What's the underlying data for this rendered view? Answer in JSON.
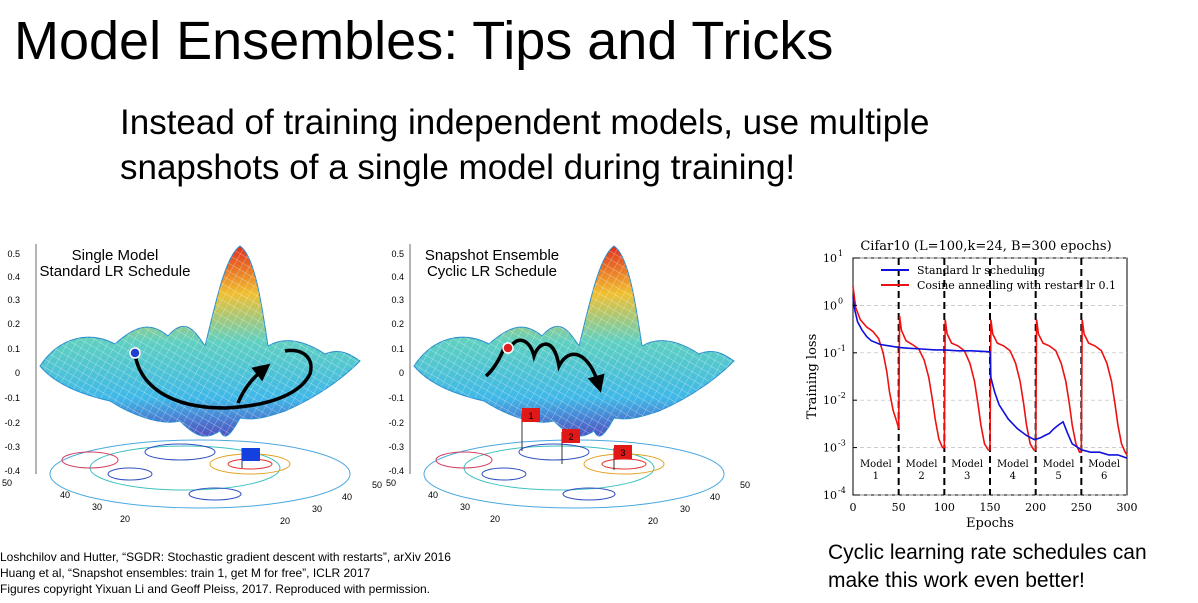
{
  "slide": {
    "title": "Model Ensembles: Tips and Tricks",
    "subtitle_lines": [
      "Instead of training independent models, use multiple",
      "snapshots of a single model during training!"
    ],
    "caption_lines": [
      "Cyclic learning rate schedules can",
      "make this work even better!"
    ],
    "citations": [
      "Loshchilov and Hutter, “SGDR: Stochastic gradient descent with restarts”, arXiv 2016",
      "Huang et al, “Snapshot ensembles: train 1, get M for free”, ICLR 2017",
      "Figures copyright Yixuan Li and Geoff Pleiss, 2017. Reproduced with permission."
    ]
  },
  "surface_plots": [
    {
      "label_lines": [
        "Single Model",
        "Standard LR Schedule"
      ],
      "z_ticks": [
        "0.5",
        "0.4",
        "0.3",
        "0.2",
        "0.1",
        "0",
        "-0.1",
        "-0.2",
        "-0.3",
        "-0.4"
      ],
      "x_ticks": [
        "50",
        "40",
        "30",
        "20"
      ],
      "y_ticks": [
        "20",
        "30",
        "40",
        "50"
      ],
      "flags": [
        ""
      ]
    },
    {
      "label_lines": [
        "Snapshot Ensemble",
        "Cyclic LR Schedule"
      ],
      "z_ticks": [
        "0.5",
        "0.4",
        "0.3",
        "0.2",
        "0.1",
        "0",
        "-0.1",
        "-0.2",
        "-0.3",
        "-0.4"
      ],
      "x_ticks": [
        "50",
        "40",
        "30",
        "20"
      ],
      "y_ticks": [
        "20",
        "30",
        "40",
        "50"
      ],
      "flags": [
        "1",
        "2",
        "3"
      ]
    }
  ],
  "chart_data": {
    "type": "line",
    "title": "Cifar10 (L=100,k=24, B=300 epochs)",
    "xlabel": "Epochs",
    "ylabel": "Training loss",
    "xlim": [
      0,
      300
    ],
    "ylim": [
      0.0001,
      10
    ],
    "yscale": "log",
    "x_ticks": [
      0,
      50,
      100,
      150,
      200,
      250,
      300
    ],
    "y_ticks": [
      {
        "value": 10,
        "mant": "10",
        "exp": "1"
      },
      {
        "value": 1,
        "mant": "10",
        "exp": "0"
      },
      {
        "value": 0.1,
        "mant": "10",
        "exp": "-1"
      },
      {
        "value": 0.01,
        "mant": "10",
        "exp": "-2"
      },
      {
        "value": 0.001,
        "mant": "10",
        "exp": "-3"
      },
      {
        "value": 0.0001,
        "mant": "10",
        "exp": "-4"
      }
    ],
    "restarts": [
      50,
      100,
      150,
      200,
      250
    ],
    "model_labels": [
      {
        "name": "Model",
        "num": "1",
        "x": 25
      },
      {
        "name": "Model",
        "num": "2",
        "x": 75
      },
      {
        "name": "Model",
        "num": "3",
        "x": 125
      },
      {
        "name": "Model",
        "num": "4",
        "x": 175
      },
      {
        "name": "Model",
        "num": "5",
        "x": 225
      },
      {
        "name": "Model",
        "num": "6",
        "x": 275
      }
    ],
    "legend_position": "top-right",
    "grid": true,
    "series": [
      {
        "name": "Standard lr scheduling",
        "color": "#1010dd",
        "x": [
          0,
          2,
          5,
          10,
          15,
          20,
          30,
          40,
          50,
          60,
          75,
          90,
          100,
          115,
          130,
          150,
          151,
          155,
          160,
          170,
          180,
          190,
          198,
          200,
          205,
          210,
          215,
          220,
          225,
          230,
          235,
          240,
          250,
          260,
          270,
          280,
          290,
          300
        ],
        "y": [
          1.5,
          0.8,
          0.45,
          0.3,
          0.22,
          0.18,
          0.15,
          0.14,
          0.13,
          0.125,
          0.12,
          0.115,
          0.115,
          0.11,
          0.11,
          0.105,
          0.03,
          0.015,
          0.008,
          0.004,
          0.0025,
          0.0018,
          0.0015,
          0.0015,
          0.0016,
          0.0018,
          0.002,
          0.0025,
          0.003,
          0.0035,
          0.002,
          0.0012,
          0.0009,
          0.0008,
          0.0008,
          0.0007,
          0.0007,
          0.0006
        ]
      },
      {
        "name": "Cosine annealing with restart lr 0.1",
        "color": "#ee1111",
        "x": [
          0,
          3,
          8,
          15,
          22,
          28,
          33,
          37,
          40,
          44,
          48,
          50,
          51,
          53,
          58,
          65,
          72,
          78,
          83,
          87,
          90,
          94,
          98,
          100,
          101,
          103,
          108,
          115,
          122,
          128,
          133,
          137,
          140,
          144,
          148,
          150,
          151,
          153,
          158,
          165,
          172,
          178,
          183,
          187,
          190,
          194,
          198,
          200,
          201,
          203,
          208,
          215,
          222,
          228,
          233,
          237,
          240,
          244,
          248,
          250,
          251,
          253,
          258,
          265,
          272,
          278,
          283,
          287,
          290,
          294,
          298,
          300
        ],
        "y": [
          2.5,
          0.9,
          0.5,
          0.35,
          0.28,
          0.2,
          0.1,
          0.04,
          0.015,
          0.006,
          0.0035,
          0.0025,
          0.6,
          0.3,
          0.18,
          0.15,
          0.12,
          0.07,
          0.03,
          0.01,
          0.004,
          0.0015,
          0.001,
          0.001,
          0.5,
          0.25,
          0.16,
          0.14,
          0.11,
          0.06,
          0.025,
          0.008,
          0.003,
          0.0012,
          0.0009,
          0.0009,
          0.5,
          0.25,
          0.16,
          0.14,
          0.11,
          0.06,
          0.025,
          0.008,
          0.003,
          0.0012,
          0.0009,
          0.0009,
          0.5,
          0.25,
          0.16,
          0.14,
          0.11,
          0.06,
          0.025,
          0.008,
          0.003,
          0.0012,
          0.0008,
          0.0008,
          0.5,
          0.25,
          0.16,
          0.14,
          0.11,
          0.06,
          0.025,
          0.008,
          0.003,
          0.0012,
          0.0008,
          0.0007
        ]
      }
    ]
  }
}
